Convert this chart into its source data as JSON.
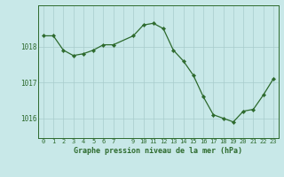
{
  "hours": [
    0,
    1,
    2,
    3,
    4,
    5,
    6,
    7,
    9,
    10,
    11,
    12,
    13,
    14,
    15,
    16,
    17,
    18,
    19,
    20,
    21,
    22,
    23
  ],
  "pressure": [
    1018.3,
    1018.3,
    1017.9,
    1017.75,
    1017.8,
    1017.9,
    1018.05,
    1018.05,
    1018.3,
    1018.6,
    1018.65,
    1018.5,
    1017.9,
    1017.6,
    1017.2,
    1016.6,
    1016.1,
    1016.0,
    1015.9,
    1016.2,
    1016.25,
    1016.65,
    1017.1
  ],
  "line_color": "#2d6a2d",
  "marker_color": "#2d6a2d",
  "bg_color": "#c8e8e8",
  "grid_color": "#a8cccc",
  "axis_color": "#2d6a2d",
  "text_color": "#2d6a2d",
  "xlabel": "Graphe pression niveau de la mer (hPa)",
  "yticks": [
    1016,
    1017,
    1018
  ],
  "ylim": [
    1015.45,
    1019.15
  ],
  "xlim": [
    -0.5,
    23.5
  ]
}
